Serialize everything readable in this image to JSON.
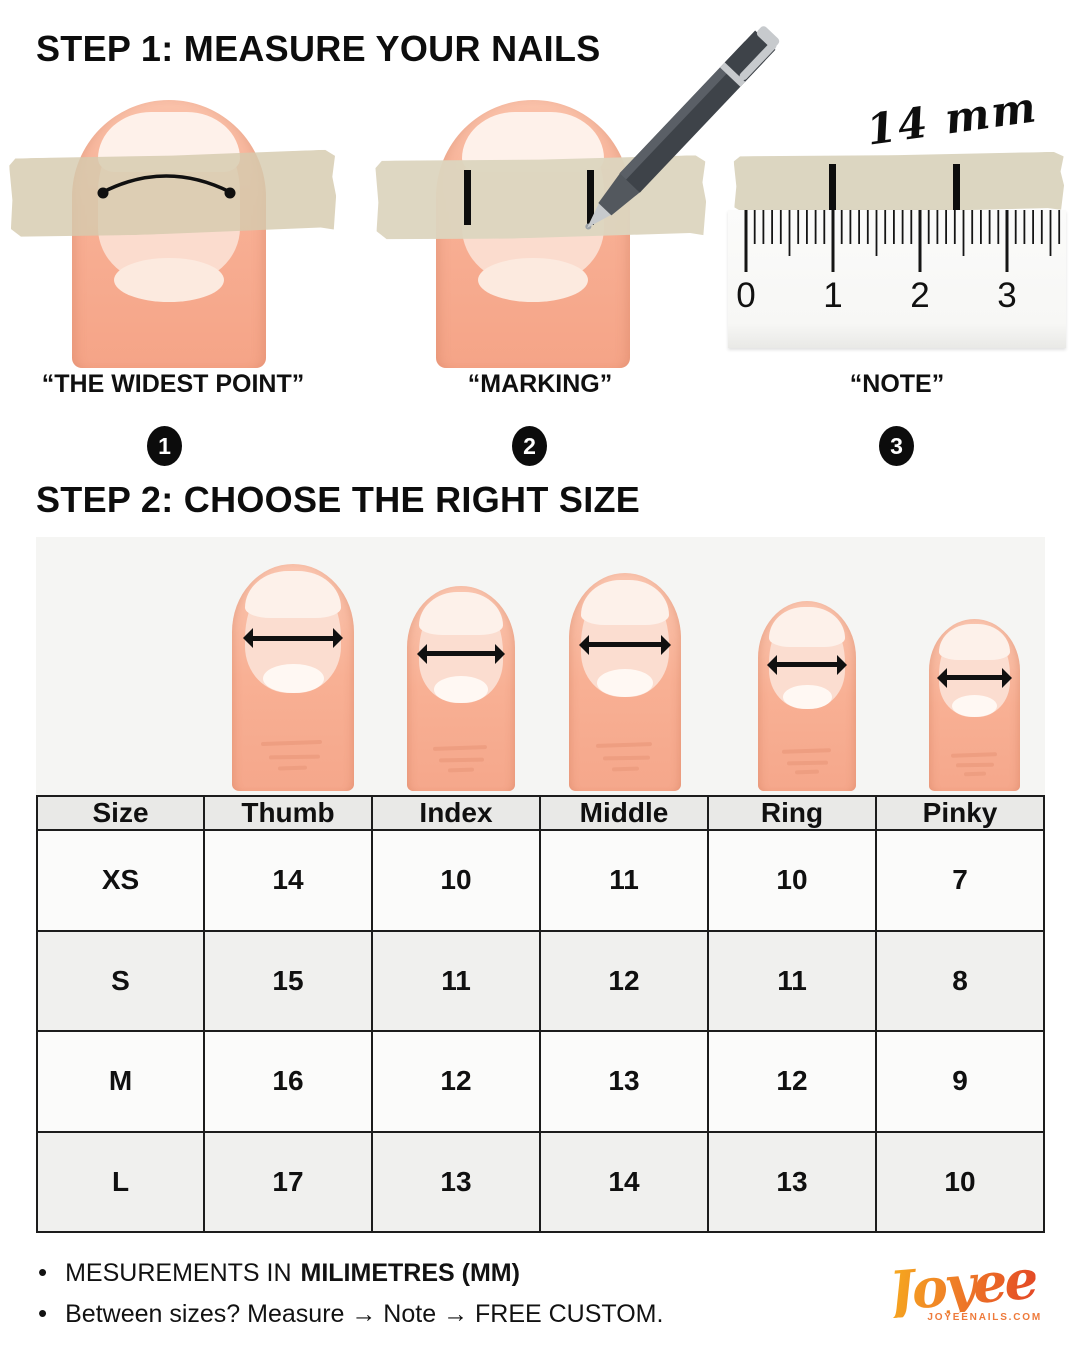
{
  "step1": {
    "title": "STEP 1: MEASURE YOUR NAILS",
    "items": [
      {
        "caption": "“THE WIDEST POINT”",
        "number": "1"
      },
      {
        "caption": "“MARKING”",
        "number": "2"
      },
      {
        "caption": "“NOTE”",
        "number": "3"
      }
    ],
    "ruler": {
      "annotation": "14 mm",
      "tick_labels": [
        "0",
        "1",
        "2",
        "3"
      ]
    }
  },
  "step2": {
    "title": "STEP 2: CHOOSE THE RIGHT SIZE",
    "table": {
      "headers": [
        "Size",
        "Thumb",
        "Index",
        "Middle",
        "Ring",
        "Pinky"
      ],
      "rows": [
        {
          "label": "XS",
          "values": [
            "14",
            "10",
            "11",
            "10",
            "7"
          ]
        },
        {
          "label": "S",
          "values": [
            "15",
            "11",
            "12",
            "11",
            "8"
          ]
        },
        {
          "label": "M",
          "values": [
            "16",
            "12",
            "13",
            "12",
            "9"
          ]
        },
        {
          "label": "L",
          "values": [
            "17",
            "13",
            "14",
            "13",
            "10"
          ]
        }
      ],
      "unit": "mm"
    }
  },
  "footer": {
    "note1_prefix": "MESUREMENTS IN",
    "note1_bold": "MILIMETRES (MM)",
    "note2": "Between sizes? Measure → Note → FREE CUSTOM.",
    "logo": {
      "brand": "Joyee",
      "site": "JOYEENAILS.COM"
    }
  },
  "colors": {
    "skin": "#F8B094",
    "nail": "#FBDDD0",
    "tape": "#D9D0B4",
    "panel_bg": "#F5F5F3",
    "accent_orange": "#EE7A3B"
  }
}
